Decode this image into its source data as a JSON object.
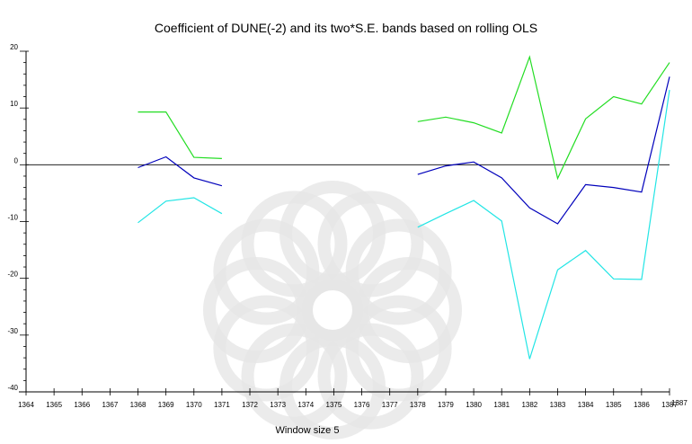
{
  "chart_data": {
    "type": "line",
    "title": "Coefficient of DUNE(-2) and its two*S.E. bands based on rolling OLS",
    "xlabel": "Window size 5",
    "ylabel": "",
    "xlim": [
      1364,
      1387
    ],
    "ylim": [
      -40,
      20
    ],
    "x_ticks": [
      "1364",
      "1365",
      "1366",
      "1367",
      "1368",
      "1369",
      "1370",
      "1371",
      "1372",
      "1373",
      "1374",
      "1375",
      "1376",
      "1377",
      "1378",
      "1379",
      "1380",
      "1381",
      "1382",
      "1383",
      "1384",
      "1385",
      "1386",
      "1387"
    ],
    "x_end_label": "1387",
    "y_ticks": [
      "20",
      "10",
      "0",
      "-10",
      "-20",
      "-30",
      "-40"
    ],
    "zero_line": true,
    "grid": false,
    "legend": "none",
    "x": [
      1368,
      1369,
      1370,
      1371,
      1372,
      1373,
      1374,
      1375,
      1376,
      1377,
      1378,
      1379,
      1380,
      1381,
      1382,
      1383,
      1384,
      1385,
      1386,
      1387
    ],
    "series": [
      {
        "color": "#22dd22",
        "values": [
          9.3,
          9.3,
          1.3,
          1.1,
          null,
          null,
          null,
          null,
          null,
          null,
          7.6,
          8.4,
          7.4,
          5.6,
          19.0,
          -2.4,
          8.1,
          12.0,
          10.7,
          18.0
        ]
      },
      {
        "color": "#0000bb",
        "values": [
          -0.5,
          1.4,
          -2.3,
          -3.7,
          null,
          null,
          null,
          null,
          null,
          null,
          -1.7,
          -0.2,
          0.5,
          -2.3,
          -7.6,
          -10.4,
          -3.5,
          -4.0,
          -4.8,
          15.5
        ]
      },
      {
        "color": "#22e5e5",
        "values": [
          -10.2,
          -6.4,
          -5.8,
          -8.6,
          null,
          null,
          null,
          null,
          null,
          null,
          -11.0,
          -8.6,
          -6.3,
          -9.9,
          -34.2,
          -18.5,
          -15.1,
          -20.1,
          -20.2,
          13.2
        ]
      }
    ]
  },
  "colors": {
    "axis": "#000000",
    "zero_line": "#000000",
    "watermark": "#e6e6e6"
  }
}
